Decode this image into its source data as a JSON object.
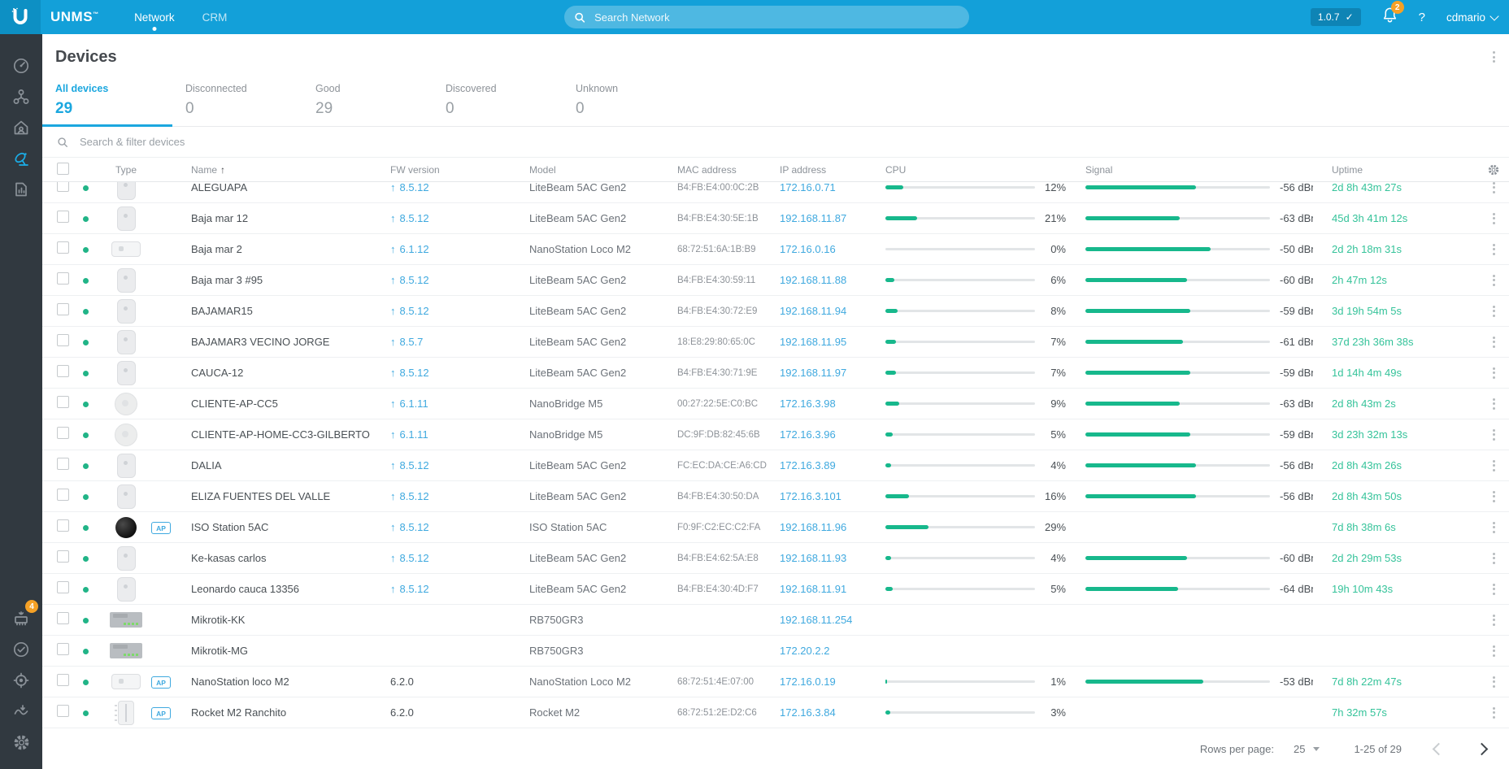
{
  "topbar": {
    "brand": "UNMS",
    "brand_tm": "™",
    "nav": [
      {
        "label": "Network",
        "active": true
      },
      {
        "label": "CRM",
        "active": false
      }
    ],
    "search_placeholder": "Search Network",
    "version": "1.0.7",
    "version_check": "✓",
    "notification_count": "2",
    "help_label": "?",
    "user_name": "cdmario"
  },
  "sidebar": {
    "top_items": [
      "dashboard",
      "topology",
      "sites",
      "devices",
      "reports"
    ],
    "active_item": "devices",
    "bottom_items": [
      "firmware",
      "tasks",
      "discovery",
      "logs",
      "settings"
    ],
    "firmware_badge": "4"
  },
  "page": {
    "title": "Devices",
    "tabs": [
      {
        "label": "All devices",
        "value": "29",
        "active": true
      },
      {
        "label": "Disconnected",
        "value": "0",
        "active": false
      },
      {
        "label": "Good",
        "value": "29",
        "active": false
      },
      {
        "label": "Discovered",
        "value": "0",
        "active": false
      },
      {
        "label": "Unknown",
        "value": "0",
        "active": false
      }
    ]
  },
  "filter": {
    "placeholder": "Search & filter devices"
  },
  "table": {
    "columns": [
      "Type",
      "Name",
      "FW version",
      "Model",
      "MAC address",
      "IP address",
      "CPU",
      "Signal",
      "Uptime"
    ],
    "sort_arrow": "↑",
    "fw_upgrade_arrow": "↑",
    "ap_badge_label": "AP",
    "rows": [
      {
        "name": "ALEGUAPA",
        "fw": "8.5.12",
        "fw_up": true,
        "model": "LiteBeam 5AC Gen2",
        "mac": "B4:FB:E4:00:0C:2B",
        "ip": "172.16.0.71",
        "cpu": "12%",
        "cpu_pct": 12,
        "signal": "-56 dBm",
        "signal_pct": 60,
        "uptime": "2d 8h 43m 27s",
        "thumb": "litebeam",
        "ap": false,
        "clipped": true
      },
      {
        "name": "Baja mar 12",
        "fw": "8.5.12",
        "fw_up": true,
        "model": "LiteBeam 5AC Gen2",
        "mac": "B4:FB:E4:30:5E:1B",
        "ip": "192.168.11.87",
        "cpu": "21%",
        "cpu_pct": 21,
        "signal": "-63 dBm",
        "signal_pct": 51,
        "uptime": "45d 3h 41m 12s",
        "thumb": "litebeam",
        "ap": false
      },
      {
        "name": "Baja mar 2",
        "fw": "6.1.12",
        "fw_up": true,
        "model": "NanoStation Loco M2",
        "mac": "68:72:51:6A:1B:B9",
        "ip": "172.16.0.16",
        "cpu": "0%",
        "cpu_pct": 0,
        "signal": "-50 dBm",
        "signal_pct": 68,
        "uptime": "2d 2h 18m 31s",
        "thumb": "nanostation",
        "ap": false
      },
      {
        "name": "Baja mar 3 #95",
        "fw": "8.5.12",
        "fw_up": true,
        "model": "LiteBeam 5AC Gen2",
        "mac": "B4:FB:E4:30:59:11",
        "ip": "192.168.11.88",
        "cpu": "6%",
        "cpu_pct": 6,
        "signal": "-60 dBm",
        "signal_pct": 55,
        "uptime": "2h 47m 12s",
        "thumb": "litebeam",
        "ap": false
      },
      {
        "name": "BAJAMAR15",
        "fw": "8.5.12",
        "fw_up": true,
        "model": "LiteBeam 5AC Gen2",
        "mac": "B4:FB:E4:30:72:E9",
        "ip": "192.168.11.94",
        "cpu": "8%",
        "cpu_pct": 8,
        "signal": "-59 dBm",
        "signal_pct": 57,
        "uptime": "3d 19h 54m 5s",
        "thumb": "litebeam",
        "ap": false
      },
      {
        "name": "BAJAMAR3 VECINO JORGE",
        "fw": "8.5.7",
        "fw_up": true,
        "model": "LiteBeam 5AC Gen2",
        "mac": "18:E8:29:80:65:0C",
        "ip": "192.168.11.95",
        "cpu": "7%",
        "cpu_pct": 7,
        "signal": "-61 dBm",
        "signal_pct": 53,
        "uptime": "37d 23h 36m 38s",
        "thumb": "litebeam",
        "ap": false
      },
      {
        "name": "CAUCA-12",
        "fw": "8.5.12",
        "fw_up": true,
        "model": "LiteBeam 5AC Gen2",
        "mac": "B4:FB:E4:30:71:9E",
        "ip": "192.168.11.97",
        "cpu": "7%",
        "cpu_pct": 7,
        "signal": "-59 dBm",
        "signal_pct": 57,
        "uptime": "1d 14h 4m 49s",
        "thumb": "litebeam",
        "ap": false
      },
      {
        "name": "CLIENTE-AP-CC5",
        "fw": "6.1.11",
        "fw_up": true,
        "model": "NanoBridge M5",
        "mac": "00:27:22:5E:C0:BC",
        "ip": "172.16.3.98",
        "cpu": "9%",
        "cpu_pct": 9,
        "signal": "-63 dBm",
        "signal_pct": 51,
        "uptime": "2d 8h 43m 2s",
        "thumb": "nanobridge",
        "ap": false
      },
      {
        "name": "CLIENTE-AP-HOME-CC3-GILBERTO",
        "fw": "6.1.11",
        "fw_up": true,
        "model": "NanoBridge M5",
        "mac": "DC:9F:DB:82:45:6B",
        "ip": "172.16.3.96",
        "cpu": "5%",
        "cpu_pct": 5,
        "signal": "-59 dBm",
        "signal_pct": 57,
        "uptime": "3d 23h 32m 13s",
        "thumb": "nanobridge",
        "ap": false
      },
      {
        "name": "DALIA",
        "fw": "8.5.12",
        "fw_up": true,
        "model": "LiteBeam 5AC Gen2",
        "mac": "FC:EC:DA:CE:A6:CD",
        "ip": "172.16.3.89",
        "cpu": "4%",
        "cpu_pct": 4,
        "signal": "-56 dBm",
        "signal_pct": 60,
        "uptime": "2d 8h 43m 26s",
        "thumb": "litebeam",
        "ap": false
      },
      {
        "name": "ELIZA FUENTES DEL VALLE",
        "fw": "8.5.12",
        "fw_up": true,
        "model": "LiteBeam 5AC Gen2",
        "mac": "B4:FB:E4:30:50:DA",
        "ip": "172.16.3.101",
        "cpu": "16%",
        "cpu_pct": 16,
        "signal": "-56 dBm",
        "signal_pct": 60,
        "uptime": "2d 8h 43m 50s",
        "thumb": "litebeam",
        "ap": false
      },
      {
        "name": "ISO Station 5AC",
        "fw": "8.5.12",
        "fw_up": true,
        "model": "ISO Station 5AC",
        "mac": "F0:9F:C2:EC:C2:FA",
        "ip": "192.168.11.96",
        "cpu": "29%",
        "cpu_pct": 29,
        "signal": "",
        "signal_pct": null,
        "uptime": "7d 8h 38m 6s",
        "thumb": "isostation",
        "ap": true
      },
      {
        "name": "Ke-kasas carlos",
        "fw": "8.5.12",
        "fw_up": true,
        "model": "LiteBeam 5AC Gen2",
        "mac": "B4:FB:E4:62:5A:E8",
        "ip": "192.168.11.93",
        "cpu": "4%",
        "cpu_pct": 4,
        "signal": "-60 dBm",
        "signal_pct": 55,
        "uptime": "2d 2h 29m 53s",
        "thumb": "litebeam",
        "ap": false
      },
      {
        "name": "Leonardo cauca 13356",
        "fw": "8.5.12",
        "fw_up": true,
        "model": "LiteBeam 5AC Gen2",
        "mac": "B4:FB:E4:30:4D:F7",
        "ip": "192.168.11.91",
        "cpu": "5%",
        "cpu_pct": 5,
        "signal": "-64 dBm",
        "signal_pct": 50,
        "uptime": "19h 10m 43s",
        "thumb": "litebeam",
        "ap": false
      },
      {
        "name": "Mikrotik-KK",
        "fw": "",
        "fw_up": false,
        "model": "RB750GR3",
        "mac": "",
        "ip": "192.168.11.254",
        "cpu": "",
        "cpu_pct": null,
        "signal": "",
        "signal_pct": null,
        "uptime": "",
        "thumb": "router",
        "ap": false
      },
      {
        "name": "Mikrotik-MG",
        "fw": "",
        "fw_up": false,
        "model": "RB750GR3",
        "mac": "",
        "ip": "172.20.2.2",
        "cpu": "",
        "cpu_pct": null,
        "signal": "",
        "signal_pct": null,
        "uptime": "",
        "thumb": "router",
        "ap": false
      },
      {
        "name": "NanoStation loco M2",
        "fw": "6.2.0",
        "fw_up": false,
        "model": "NanoStation Loco M2",
        "mac": "68:72:51:4E:07:00",
        "ip": "172.16.0.19",
        "cpu": "1%",
        "cpu_pct": 1,
        "signal": "-53 dBm",
        "signal_pct": 64,
        "uptime": "7d 8h 22m 47s",
        "thumb": "nanostation",
        "ap": true
      },
      {
        "name": "Rocket M2 Ranchito",
        "fw": "6.2.0",
        "fw_up": false,
        "model": "Rocket M2",
        "mac": "68:72:51:2E:D2:C6",
        "ip": "172.16.3.84",
        "cpu": "3%",
        "cpu_pct": 3,
        "signal": "",
        "signal_pct": null,
        "uptime": "7h 32m 57s",
        "thumb": "rocket",
        "ap": true
      }
    ]
  },
  "footer": {
    "rows_per_page_label": "Rows per page:",
    "rows_per_page_value": "25",
    "range": "1-25 of 29"
  }
}
